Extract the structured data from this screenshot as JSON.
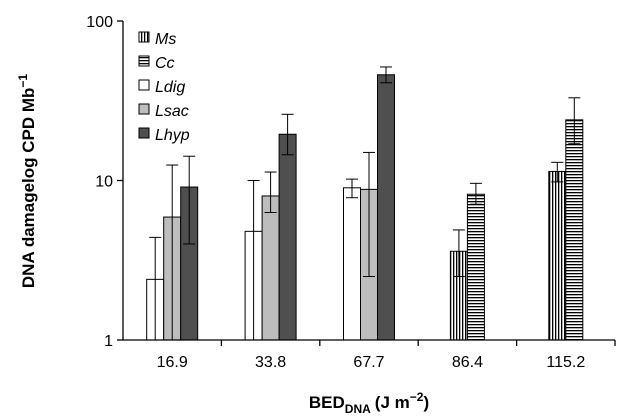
{
  "chart_data": {
    "type": "bar",
    "categories": [
      "16.9",
      "33.8",
      "67.7",
      "86.4",
      "115.2"
    ],
    "series": [
      {
        "name": "Ms",
        "pattern": "vertical-stripes",
        "values": [
          null,
          null,
          null,
          3.6,
          11.4
        ],
        "err_low": [
          null,
          null,
          null,
          2.5,
          9.8
        ],
        "err_high": [
          null,
          null,
          null,
          4.9,
          13.0
        ]
      },
      {
        "name": "Cc",
        "pattern": "horizontal-stripes",
        "values": [
          null,
          null,
          null,
          8.2,
          24.0
        ],
        "err_low": [
          null,
          null,
          null,
          7.1,
          17.0
        ],
        "err_high": [
          null,
          null,
          null,
          9.6,
          33.0
        ]
      },
      {
        "name": "Ldig",
        "pattern": "white",
        "values": [
          2.4,
          4.8,
          9.0,
          null,
          null
        ],
        "err_low": [
          1.0,
          1.0,
          7.8,
          null,
          null
        ],
        "err_high": [
          4.4,
          10.0,
          10.2,
          null,
          null
        ]
      },
      {
        "name": "Lsac",
        "pattern": "light-gray",
        "values": [
          5.9,
          8.0,
          8.8,
          null,
          null
        ],
        "err_low": [
          1.0,
          6.3,
          2.5,
          null,
          null
        ],
        "err_high": [
          12.5,
          11.3,
          15.0,
          null,
          null
        ]
      },
      {
        "name": "Lhyp",
        "pattern": "dark-gray",
        "values": [
          9.1,
          19.5,
          46.0,
          null,
          null
        ],
        "err_low": [
          4.0,
          14.5,
          41.0,
          null,
          null
        ],
        "err_high": [
          14.2,
          26.0,
          51.5,
          null,
          null
        ]
      }
    ],
    "y_scale": "log",
    "ylim": [
      1,
      100
    ],
    "y_ticks": [
      "1",
      "10",
      "100"
    ],
    "ylabel": "DNA damagelog CPD Mb",
    "ylabel_sup": "−1",
    "xlabel": "BED",
    "xlabel_sub": "DNA",
    "xlabel_unit": "(J m",
    "xlabel_unit_sup": "−2",
    "xlabel_unit_close": ")",
    "legend_position": "top-left",
    "grid": false,
    "colors": {
      "white": "#ffffff",
      "light-gray": "#bdbdbd",
      "dark-gray": "#4f4f4f",
      "stroke": "#000000"
    }
  }
}
